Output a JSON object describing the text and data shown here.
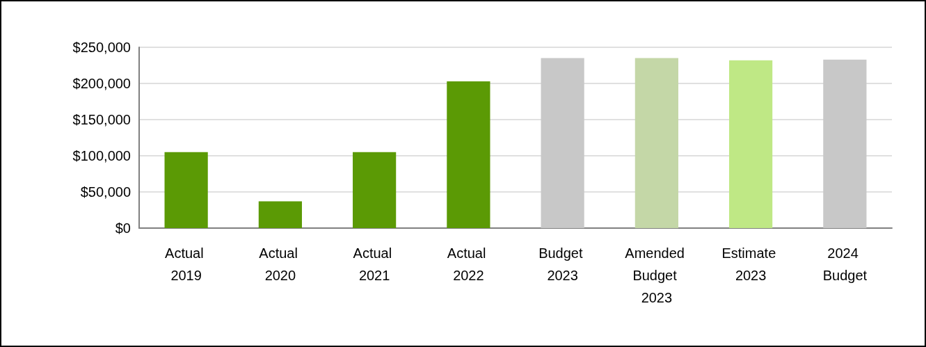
{
  "chart_data": {
    "type": "bar",
    "categories": [
      "Actual 2019",
      "Actual 2020",
      "Actual 2021",
      "Actual 2022",
      "Budget 2023",
      "Amended Budget 2023",
      "Estimate 2023",
      "2024 Budget"
    ],
    "values": [
      105000,
      37000,
      105000,
      203000,
      235000,
      235000,
      232000,
      233000
    ],
    "colors": [
      "#5b9a05",
      "#5b9a05",
      "#5b9a05",
      "#5b9a05",
      "#c8c8c8",
      "#c4d7a7",
      "#bfe885",
      "#c8c8c8"
    ],
    "ylim": [
      0,
      250000
    ],
    "yticks": [
      {
        "value": 0,
        "label": "$0"
      },
      {
        "value": 50000,
        "label": "$50,000"
      },
      {
        "value": 100000,
        "label": "$100,000"
      },
      {
        "value": 150000,
        "label": "$150,000"
      },
      {
        "value": 200000,
        "label": "$200,000"
      },
      {
        "value": 250000,
        "label": "$250,000"
      }
    ],
    "grid": "y"
  }
}
